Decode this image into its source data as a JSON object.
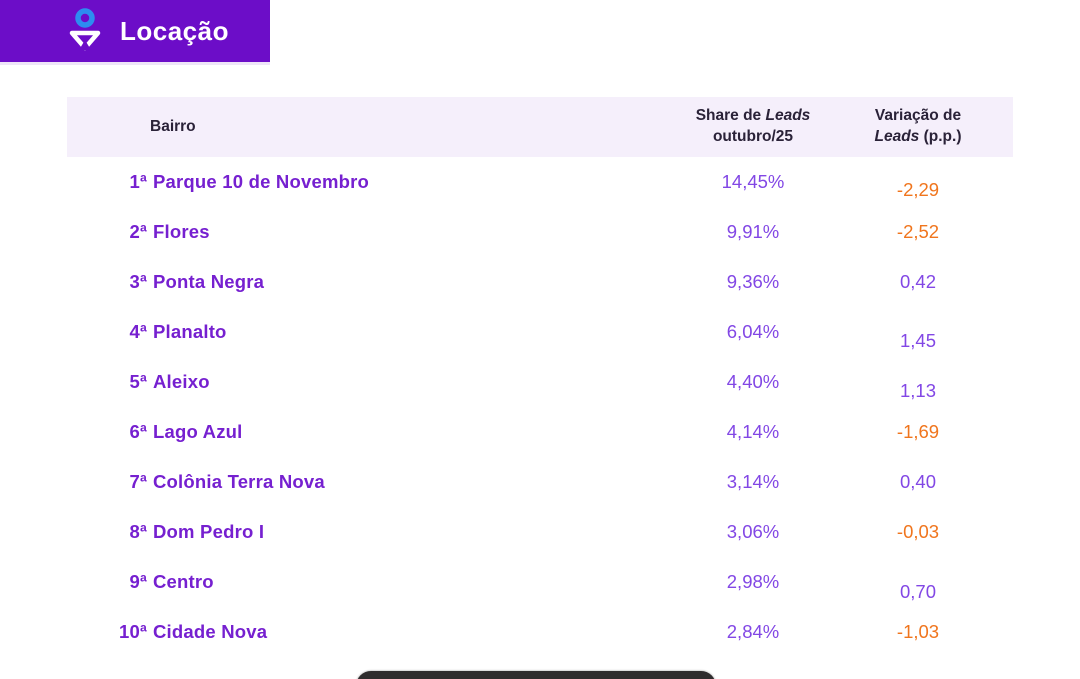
{
  "banner": {
    "title": "Locação",
    "bg_color": "#6C0DC8",
    "icon": "location-funnel-icon",
    "icon_ring_color": "#2D8CF0"
  },
  "table": {
    "header": {
      "bairro": "Bairro",
      "share_line1_text": "Share de ",
      "share_line1_italic": "Leads",
      "share_line2": "outubro/25",
      "var_line1": "Variação de",
      "var_line2_italic": "Leads",
      "var_line2_text": " (p.p.)"
    },
    "rows": [
      {
        "rank": "1ª",
        "bairro": "Parque 10 de Novembro",
        "share": "14,45%",
        "variation": "-2,29"
      },
      {
        "rank": "2ª",
        "bairro": "Flores",
        "share": "9,91%",
        "variation": "-2,52"
      },
      {
        "rank": "3ª",
        "bairro": "Ponta Negra",
        "share": "9,36%",
        "variation": "0,42"
      },
      {
        "rank": "4ª",
        "bairro": "Planalto",
        "share": "6,04%",
        "variation": "1,45"
      },
      {
        "rank": "5ª",
        "bairro": "Aleixo",
        "share": "4,40%",
        "variation": "1,13"
      },
      {
        "rank": "6ª",
        "bairro": "Lago Azul",
        "share": "4,14%",
        "variation": "-1,69"
      },
      {
        "rank": "7ª",
        "bairro": "Colônia Terra Nova",
        "share": "3,14%",
        "variation": "0,40"
      },
      {
        "rank": "8ª",
        "bairro": "Dom Pedro I",
        "share": "3,06%",
        "variation": "-0,03"
      },
      {
        "rank": "9ª",
        "bairro": "Centro",
        "share": "2,98%",
        "variation": "0,70"
      },
      {
        "rank": "10ª",
        "bairro": "Cidade Nova",
        "share": "2,84%",
        "variation": "-1,03"
      }
    ]
  },
  "colors": {
    "banner_purple": "#6C0DC8",
    "bairro_purple": "#7620D0",
    "value_purple": "#8247E5",
    "negative_orange": "#F0751D",
    "header_bg": "#F5EFFB",
    "header_text": "#2A2238",
    "icon_blue": "#2D8CF0"
  },
  "chart_data": {
    "type": "table",
    "title": "Locação",
    "columns": [
      "Bairro",
      "Share de Leads outubro/25",
      "Variação de Leads (p.p.)"
    ],
    "rows": [
      [
        "1ª Parque 10 de Novembro",
        "14,45%",
        "-2,29"
      ],
      [
        "2ª Flores",
        "9,91%",
        "-2,52"
      ],
      [
        "3ª Ponta Negra",
        "9,36%",
        "0,42"
      ],
      [
        "4ª Planalto",
        "6,04%",
        "1,45"
      ],
      [
        "5ª Aleixo",
        "4,40%",
        "1,13"
      ],
      [
        "6ª Lago Azul",
        "4,14%",
        "-1,69"
      ],
      [
        "7ª Colônia Terra Nova",
        "3,14%",
        "0,40"
      ],
      [
        "8ª Dom Pedro I",
        "3,06%",
        "-0,03"
      ],
      [
        "9ª Centro",
        "2,98%",
        "0,70"
      ],
      [
        "10ª Cidade Nova",
        "2,84%",
        "-1,03"
      ]
    ]
  }
}
